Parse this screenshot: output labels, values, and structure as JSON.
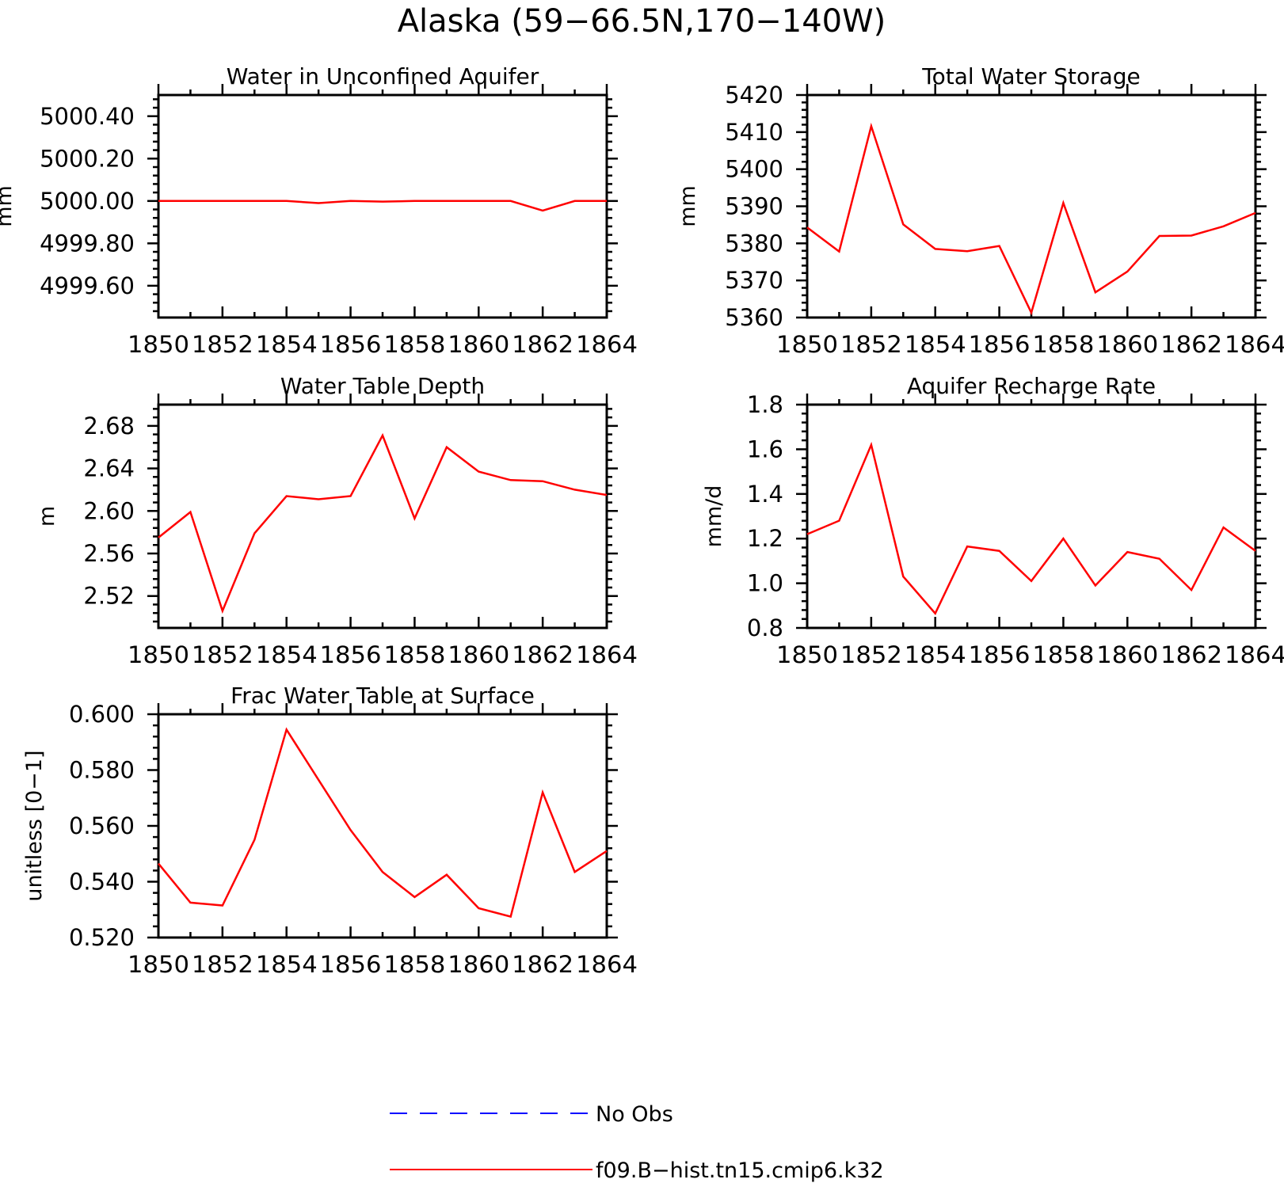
{
  "figure": {
    "title": "Alaska (59−66.5N,170−140W)",
    "colors": {
      "model": "#ff0000",
      "obs": "#0000ff",
      "axis": "#000000"
    }
  },
  "legend": {
    "placement": "bottom-center",
    "entries": [
      {
        "label": "No Obs",
        "style": "dashed",
        "color": "#0000ff"
      },
      {
        "label": "f09.B−hist.tn15.cmip6.k32",
        "style": "solid",
        "color": "#ff0000"
      }
    ]
  },
  "chart_data": [
    {
      "type": "line",
      "title": "Water in Unconfined Aquifer",
      "ylabel": "mm",
      "xlim": [
        1850,
        1864
      ],
      "ylim": [
        4999.45,
        5000.5
      ],
      "xticks": [
        1850,
        1852,
        1854,
        1856,
        1858,
        1860,
        1862,
        1864
      ],
      "xtick_labels": [
        "1850",
        "1852",
        "1854",
        "1856",
        "1858",
        "1860",
        "1862",
        "1864"
      ],
      "yticks": [
        4999.6,
        4999.8,
        5000.0,
        5000.2,
        5000.4
      ],
      "ytick_labels": [
        "4999.60",
        "4999.80",
        "5000.00",
        "5000.20",
        "5000.40"
      ],
      "x": [
        1850,
        1851,
        1852,
        1853,
        1854,
        1855,
        1856,
        1857,
        1858,
        1859,
        1860,
        1861,
        1862,
        1863,
        1864
      ],
      "series": [
        {
          "values": [
            5000.0,
            5000.0,
            5000.0,
            5000.0,
            5000.0,
            4999.99,
            5000.0,
            4999.997,
            5000.0,
            5000.0,
            5000.0,
            5000.0,
            4999.955,
            5000.0,
            5000.0
          ]
        }
      ]
    },
    {
      "type": "line",
      "title": "Total Water Storage",
      "ylabel": "mm",
      "xlim": [
        1850,
        1864
      ],
      "ylim": [
        5360,
        5420
      ],
      "xticks": [
        1850,
        1852,
        1854,
        1856,
        1858,
        1860,
        1862,
        1864
      ],
      "xtick_labels": [
        "1850",
        "1852",
        "1854",
        "1856",
        "1858",
        "1860",
        "1862",
        "1864"
      ],
      "yticks": [
        5360,
        5370,
        5380,
        5390,
        5400,
        5410,
        5420
      ],
      "ytick_labels": [
        "5360",
        "5370",
        "5380",
        "5390",
        "5400",
        "5410",
        "5420"
      ],
      "x": [
        1850,
        1851,
        1852,
        1853,
        1854,
        1855,
        1856,
        1857,
        1858,
        1859,
        1860,
        1861,
        1862,
        1863,
        1864
      ],
      "series": [
        {
          "values": [
            5384.3,
            5377.8,
            5411.6,
            5385.1,
            5378.5,
            5377.9,
            5379.3,
            5361.3,
            5390.9,
            5366.8,
            5372.4,
            5382.0,
            5382.1,
            5384.6,
            5388.2
          ]
        }
      ]
    },
    {
      "type": "line",
      "title": "Water Table Depth",
      "ylabel": "m",
      "xlim": [
        1850,
        1864
      ],
      "ylim": [
        2.49,
        2.7
      ],
      "xticks": [
        1850,
        1852,
        1854,
        1856,
        1858,
        1860,
        1862,
        1864
      ],
      "xtick_labels": [
        "1850",
        "1852",
        "1854",
        "1856",
        "1858",
        "1860",
        "1862",
        "1864"
      ],
      "yticks": [
        2.52,
        2.56,
        2.6,
        2.64,
        2.68
      ],
      "ytick_labels": [
        "2.52",
        "2.56",
        "2.60",
        "2.64",
        "2.68"
      ],
      "x": [
        1850,
        1851,
        1852,
        1853,
        1854,
        1855,
        1856,
        1857,
        1858,
        1859,
        1860,
        1861,
        1862,
        1863,
        1864
      ],
      "series": [
        {
          "values": [
            2.575,
            2.599,
            2.506,
            2.579,
            2.614,
            2.611,
            2.614,
            2.671,
            2.593,
            2.66,
            2.637,
            2.629,
            2.628,
            2.62,
            2.615
          ]
        }
      ]
    },
    {
      "type": "line",
      "title": "Aquifer Recharge Rate",
      "ylabel": "mm/d",
      "xlim": [
        1850,
        1864
      ],
      "ylim": [
        0.8,
        1.8
      ],
      "xticks": [
        1850,
        1852,
        1854,
        1856,
        1858,
        1860,
        1862,
        1864
      ],
      "xtick_labels": [
        "1850",
        "1852",
        "1854",
        "1856",
        "1858",
        "1860",
        "1862",
        "1864"
      ],
      "yticks": [
        0.8,
        1.0,
        1.2,
        1.4,
        1.6,
        1.8
      ],
      "ytick_labels": [
        "0.8",
        "1.0",
        "1.2",
        "1.4",
        "1.6",
        "1.8"
      ],
      "x": [
        1850,
        1851,
        1852,
        1853,
        1854,
        1855,
        1856,
        1857,
        1858,
        1859,
        1860,
        1861,
        1862,
        1863,
        1864
      ],
      "series": [
        {
          "values": [
            1.22,
            1.28,
            1.62,
            1.03,
            0.865,
            1.165,
            1.145,
            1.01,
            1.2,
            0.99,
            1.14,
            1.11,
            0.97,
            1.25,
            1.145
          ]
        }
      ]
    },
    {
      "type": "line",
      "title": "Frac Water Table at Surface",
      "ylabel": "unitless [0−1]",
      "xlim": [
        1850,
        1864
      ],
      "ylim": [
        0.52,
        0.6
      ],
      "xticks": [
        1850,
        1852,
        1854,
        1856,
        1858,
        1860,
        1862,
        1864
      ],
      "xtick_labels": [
        "1850",
        "1852",
        "1854",
        "1856",
        "1858",
        "1860",
        "1862",
        "1864"
      ],
      "yticks": [
        0.52,
        0.54,
        0.56,
        0.58,
        0.6
      ],
      "ytick_labels": [
        "0.520",
        "0.540",
        "0.560",
        "0.580",
        "0.600"
      ],
      "x": [
        1850,
        1851,
        1852,
        1853,
        1854,
        1855,
        1856,
        1857,
        1858,
        1859,
        1860,
        1861,
        1862,
        1863,
        1864
      ],
      "series": [
        {
          "values": [
            0.5465,
            0.5325,
            0.5315,
            0.555,
            0.5945,
            0.5765,
            0.5585,
            0.5435,
            0.5345,
            0.5425,
            0.5305,
            0.5275,
            0.572,
            0.5435,
            0.551
          ]
        }
      ]
    }
  ]
}
